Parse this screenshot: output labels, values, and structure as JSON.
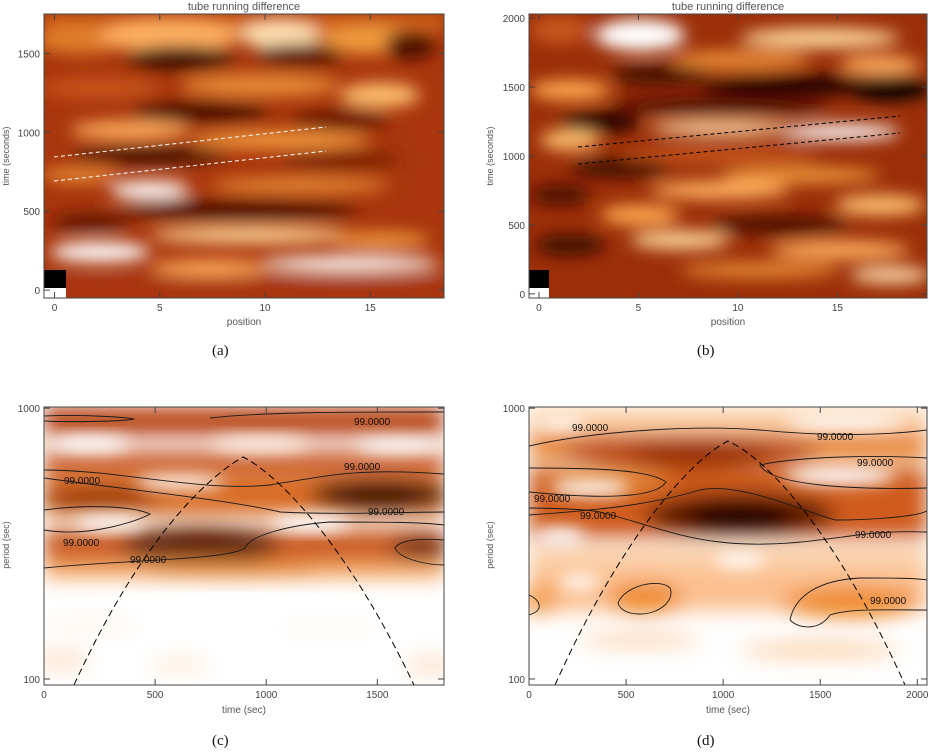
{
  "panels": [
    {
      "id": "a",
      "caption": "(a)",
      "title": "tube running difference",
      "xlabel": "position",
      "ylabel": "time (seconds)",
      "xticks": [
        "0",
        "5",
        "10",
        "15"
      ],
      "yticks": [
        "0",
        "500",
        "1000",
        "1500"
      ]
    },
    {
      "id": "b",
      "caption": "(b)",
      "title": "tube running difference",
      "xlabel": "position",
      "ylabel": "time (seconds)",
      "xticks": [
        "0",
        "5",
        "10",
        "15"
      ],
      "yticks": [
        "0",
        "500",
        "1000",
        "1500",
        "2000"
      ]
    },
    {
      "id": "c",
      "caption": "(c)",
      "title": "",
      "xlabel": "time (sec)",
      "ylabel": "period (sec)",
      "xticks": [
        "0",
        "500",
        "1000",
        "1500"
      ],
      "yticks": [
        "100",
        "1000"
      ],
      "contour_label": "99.0000"
    },
    {
      "id": "d",
      "caption": "(d)",
      "title": "",
      "xlabel": "time (sec)",
      "ylabel": "period (sec)",
      "xticks": [
        "0",
        "500",
        "1000",
        "1500",
        "2000"
      ],
      "yticks": [
        "100",
        "1000"
      ],
      "contour_label": "99.0000"
    }
  ],
  "chart_data": [
    {
      "type": "heatmap",
      "title": "tube running difference",
      "xlabel": "position",
      "ylabel": "time (seconds)",
      "xlim": [
        -0.5,
        18.5
      ],
      "ylim": [
        -50,
        1750
      ],
      "colormap": "heat (black-red-orange-white)",
      "fitted_lines": [
        {
          "style": "dashed white",
          "points": [
            [
              0.5,
              860
            ],
            [
              13,
              1060
            ]
          ]
        },
        {
          "style": "dashed white",
          "points": [
            [
              0.5,
              700
            ],
            [
              13,
              900
            ]
          ]
        }
      ]
    },
    {
      "type": "heatmap",
      "title": "tube running difference",
      "xlabel": "position",
      "ylabel": "time (seconds)",
      "xlim": [
        -0.5,
        19.5
      ],
      "ylim": [
        -30,
        2030
      ],
      "colormap": "heat (black-red-orange-white)",
      "fitted_lines": [
        {
          "style": "dashed black",
          "points": [
            [
              2.5,
              1100
            ],
            [
              18,
              1300
            ]
          ]
        },
        {
          "style": "dashed black",
          "points": [
            [
              2.5,
              960
            ],
            [
              18,
              1150
            ]
          ]
        }
      ]
    },
    {
      "type": "heatmap",
      "xlabel": "time (sec)",
      "ylabel": "period (sec)",
      "xlim": [
        0,
        1800
      ],
      "ylim": [
        95,
        1010
      ],
      "y_scale": "log",
      "contour_level": "99.0000",
      "cone_of_influence": {
        "style": "dashed black",
        "peak": [
          900,
          650
        ]
      },
      "power_maxima": [
        {
          "time": 650,
          "period": 345
        },
        {
          "time": 1550,
          "period": 500
        },
        {
          "time": 300,
          "period": 500
        }
      ]
    },
    {
      "type": "heatmap",
      "xlabel": "time (sec)",
      "ylabel": "period (sec)",
      "xlim": [
        0,
        2050
      ],
      "ylim": [
        95,
        1010
      ],
      "y_scale": "log",
      "contour_level": "99.0000",
      "cone_of_influence": {
        "style": "dashed black",
        "peak": [
          1020,
          750
        ]
      },
      "power_maxima": [
        {
          "time": 1150,
          "period": 450
        },
        {
          "time": 1000,
          "period": 700
        },
        {
          "time": 630,
          "period": 195
        }
      ]
    }
  ]
}
